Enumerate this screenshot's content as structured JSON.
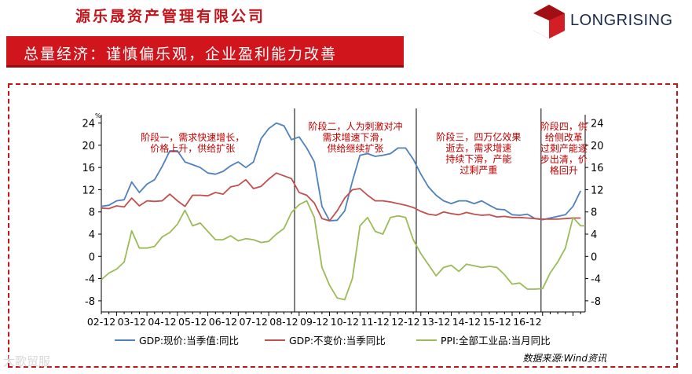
{
  "header": {
    "company_name": "源乐晟资产管理有限公司",
    "logo_text": "LONGRISING",
    "banner_title": "总量经济：谨慎偏乐观，企业盈利能力改善"
  },
  "watermark": "大歌贸服",
  "colors": {
    "brand_red": "#d0151c",
    "gdp_nominal": "#4f81bd",
    "gdp_real": "#c0504d",
    "ppi": "#9bbb59",
    "phase_text": "#c00000"
  },
  "chart_data": {
    "type": "line",
    "unit_label": "%",
    "x_tick_labels": [
      "02-12",
      "03-12",
      "04-12",
      "05-12",
      "06-12",
      "07-12",
      "08-12",
      "09-12",
      "10-12",
      "11-12",
      "12-12",
      "13-12",
      "14-12",
      "15-12",
      "16-12"
    ],
    "y_ticks": [
      -8,
      -4,
      0,
      4,
      8,
      12,
      16,
      20,
      24
    ],
    "ylim": [
      -10,
      25.5
    ],
    "x_start": 2001.5,
    "x_end": 2017.4,
    "series": [
      {
        "name": "GDP:现价:当季值:同比",
        "color": "#4f81bd",
        "x": [
          2001.5,
          2001.75,
          2002.0,
          2002.25,
          2002.5,
          2002.75,
          2003.0,
          2003.25,
          2003.5,
          2003.75,
          2004.0,
          2004.25,
          2004.5,
          2004.75,
          2005.0,
          2005.25,
          2005.5,
          2005.75,
          2006.0,
          2006.25,
          2006.5,
          2006.75,
          2007.0,
          2007.25,
          2007.5,
          2007.75,
          2008.0,
          2008.25,
          2008.5,
          2008.75,
          2009.0,
          2009.25,
          2009.5,
          2009.75,
          2010.0,
          2010.25,
          2010.5,
          2010.75,
          2011.0,
          2011.25,
          2011.5,
          2011.75,
          2012.0,
          2012.25,
          2012.5,
          2012.75,
          2013.0,
          2013.25,
          2013.5,
          2013.75,
          2014.0,
          2014.25,
          2014.5,
          2014.75,
          2015.0,
          2015.25,
          2015.5,
          2015.75,
          2016.0,
          2016.25,
          2016.5,
          2016.75,
          2017.0,
          2017.25
        ],
        "values": [
          9.0,
          9.2,
          10.0,
          10.2,
          13.4,
          11.5,
          13.0,
          13.8,
          16.2,
          19.0,
          19.0,
          17.0,
          16.5,
          16.0,
          15.0,
          14.8,
          15.3,
          16.3,
          17.0,
          16.0,
          17.0,
          21.2,
          23.0,
          24.0,
          23.5,
          21.0,
          21.5,
          19.5,
          17.0,
          9.0,
          6.4,
          6.5,
          8.2,
          13.5,
          18.2,
          18.5,
          18.0,
          18.2,
          18.5,
          19.5,
          19.5,
          17.5,
          14.8,
          12.5,
          11.0,
          10.0,
          9.5,
          10.0,
          10.0,
          9.5,
          10.0,
          9.2,
          8.5,
          8.4,
          7.5,
          7.4,
          7.6,
          6.8,
          6.6,
          6.9,
          7.2,
          7.5,
          9.0,
          11.8
        ]
      },
      {
        "name": "GDP:不变价:当季同比",
        "color": "#c0504d",
        "x": [
          2001.5,
          2001.75,
          2002.0,
          2002.25,
          2002.5,
          2002.75,
          2003.0,
          2003.25,
          2003.5,
          2003.75,
          2004.0,
          2004.25,
          2004.5,
          2004.75,
          2005.0,
          2005.25,
          2005.5,
          2005.75,
          2006.0,
          2006.25,
          2006.5,
          2006.75,
          2007.0,
          2007.25,
          2007.5,
          2007.75,
          2008.0,
          2008.25,
          2008.5,
          2008.75,
          2009.0,
          2009.25,
          2009.5,
          2009.75,
          2010.0,
          2010.25,
          2010.5,
          2010.75,
          2011.0,
          2011.25,
          2011.5,
          2011.75,
          2012.0,
          2012.25,
          2012.5,
          2012.75,
          2013.0,
          2013.25,
          2013.5,
          2013.75,
          2014.0,
          2014.25,
          2014.5,
          2014.75,
          2015.0,
          2015.25,
          2015.5,
          2015.75,
          2016.0,
          2016.25,
          2016.5,
          2016.75,
          2017.0,
          2017.25
        ],
        "values": [
          8.7,
          8.6,
          9.1,
          8.9,
          10.5,
          9.1,
          10.0,
          9.9,
          10.0,
          11.2,
          10.0,
          9.0,
          11.0,
          11.0,
          10.9,
          11.5,
          11.2,
          12.5,
          12.8,
          13.8,
          12.2,
          12.6,
          13.9,
          15.0,
          14.5,
          14.0,
          11.5,
          11.0,
          9.6,
          6.8,
          6.4,
          8.2,
          10.5,
          12.0,
          12.2,
          11.0,
          10.0,
          10.0,
          9.8,
          9.5,
          9.2,
          8.8,
          8.1,
          7.6,
          7.4,
          8.0,
          7.7,
          7.5,
          7.9,
          7.6,
          7.4,
          7.5,
          7.1,
          7.2,
          7.0,
          7.0,
          6.9,
          6.8,
          6.7,
          6.7,
          6.7,
          6.8,
          6.9,
          6.9
        ]
      },
      {
        "name": "PPI:全部工业品:当月同比",
        "color": "#9bbb59",
        "x": [
          2001.5,
          2001.75,
          2002.0,
          2002.25,
          2002.5,
          2002.75,
          2003.0,
          2003.25,
          2003.5,
          2003.75,
          2004.0,
          2004.25,
          2004.5,
          2004.75,
          2005.0,
          2005.25,
          2005.5,
          2005.75,
          2006.0,
          2006.25,
          2006.5,
          2006.75,
          2007.0,
          2007.25,
          2007.5,
          2007.75,
          2008.0,
          2008.25,
          2008.5,
          2008.75,
          2009.0,
          2009.25,
          2009.5,
          2009.75,
          2010.0,
          2010.25,
          2010.5,
          2010.75,
          2011.0,
          2011.25,
          2011.5,
          2011.75,
          2012.0,
          2012.25,
          2012.5,
          2012.75,
          2013.0,
          2013.25,
          2013.5,
          2013.75,
          2014.0,
          2014.25,
          2014.5,
          2014.75,
          2015.0,
          2015.25,
          2015.5,
          2015.75,
          2016.0,
          2016.25,
          2016.5,
          2016.75,
          2017.0,
          2017.25,
          2017.4
        ],
        "values": [
          -4.2,
          -3.0,
          -2.3,
          -1.0,
          4.6,
          1.5,
          1.5,
          1.8,
          3.5,
          4.3,
          5.8,
          8.3,
          5.5,
          6.0,
          4.5,
          3.0,
          3.0,
          3.7,
          2.8,
          3.2,
          3.0,
          2.5,
          2.7,
          4.0,
          5.0,
          7.9,
          9.3,
          10.0,
          7.0,
          -2.0,
          -5.2,
          -7.5,
          -7.8,
          -4.0,
          5.5,
          7.0,
          4.5,
          4.0,
          7.0,
          7.3,
          7.0,
          3.0,
          0.5,
          -1.5,
          -3.5,
          -2.0,
          -1.6,
          -2.7,
          -1.4,
          -1.7,
          -2.0,
          -1.8,
          -2.0,
          -3.3,
          -5.0,
          -4.8,
          -5.9,
          -5.9,
          -5.8,
          -3.0,
          -1.0,
          1.5,
          7.0,
          5.5,
          5.5
        ]
      }
    ],
    "phase_dividers_x": [
      2007.85,
      2011.85,
      2015.95
    ],
    "annotations": [
      {
        "lines": [
          "阶段一，需求快速增长，",
          "价格上升，供给扩张"
        ],
        "anchor_x": 2004.5,
        "y": 20.8
      },
      {
        "lines": [
          "阶段二，人为刺激对冲",
          "需求增速下滑，",
          "供给继续扩张"
        ],
        "anchor_x": 2009.85,
        "y": 22.8
      },
      {
        "lines": [
          "阶段三，四万亿效果",
          "逝去，需求增速",
          "持续下滑，产能",
          "过剩严重"
        ],
        "anchor_x": 2013.9,
        "y": 20.9
      },
      {
        "lines": [
          "阶段四，供",
          "给侧改革",
          "过剩产能逐",
          "步出清，价",
          "格回升"
        ],
        "anchor_x": 2016.7,
        "y": 22.8
      }
    ],
    "legend": [
      "GDP:现价:当季值:同比",
      "GDP:不变价:当季同比",
      "PPI:全部工业品:当月同比"
    ],
    "source": "数据来源:Wind资讯"
  }
}
